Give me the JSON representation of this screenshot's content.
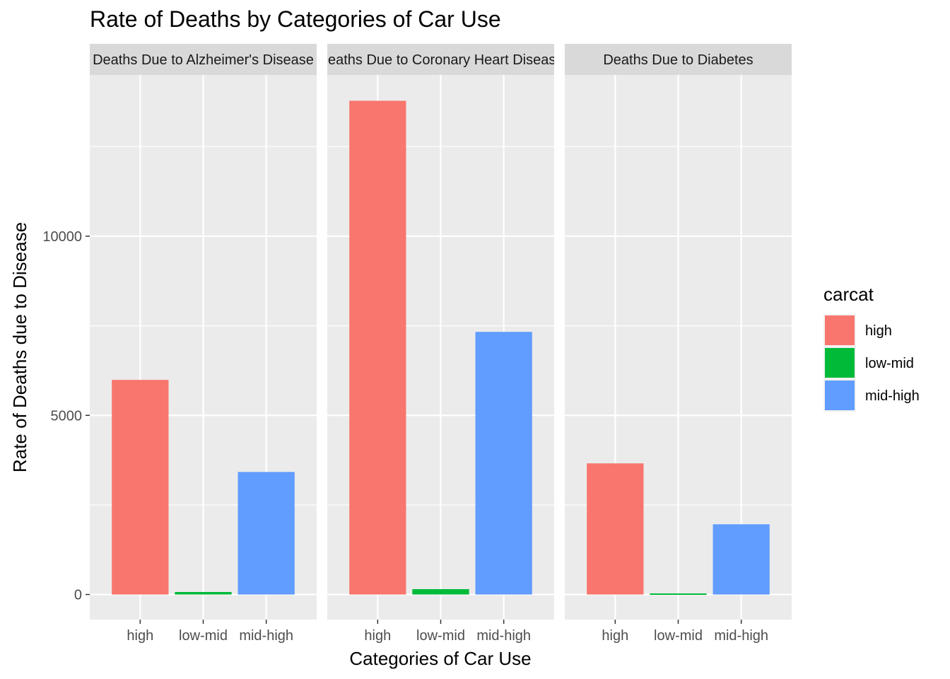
{
  "chart_data": {
    "type": "bar",
    "title": "Rate of Deaths by Categories of Car Use",
    "xlabel": "Categories of Car Use",
    "ylabel": "Rate of Deaths due to Disease",
    "categories": [
      "high",
      "low-mid",
      "mid-high"
    ],
    "y_ticks": [
      0,
      5000,
      10000
    ],
    "ylim": [
      -700,
      14500
    ],
    "grid": true,
    "legend": {
      "title": "carcat",
      "position": "right",
      "entries": [
        {
          "label": "high",
          "color": "#F8766D"
        },
        {
          "label": "low-mid",
          "color": "#00BA38"
        },
        {
          "label": "mid-high",
          "color": "#619CFF"
        }
      ]
    },
    "facets": [
      {
        "label": "Deaths Due to Alzheimer's Disease",
        "values": [
          5990,
          70,
          3420
        ]
      },
      {
        "label": "Deaths Due to Coronary Heart Disease",
        "values": [
          13780,
          150,
          7330
        ]
      },
      {
        "label": "Deaths Due to Diabetes",
        "values": [
          3660,
          30,
          1960
        ]
      }
    ]
  },
  "colors": {
    "panel_bg": "#EBEBEB",
    "strip_bg": "#D9D9D9",
    "grid": "#FFFFFF"
  }
}
